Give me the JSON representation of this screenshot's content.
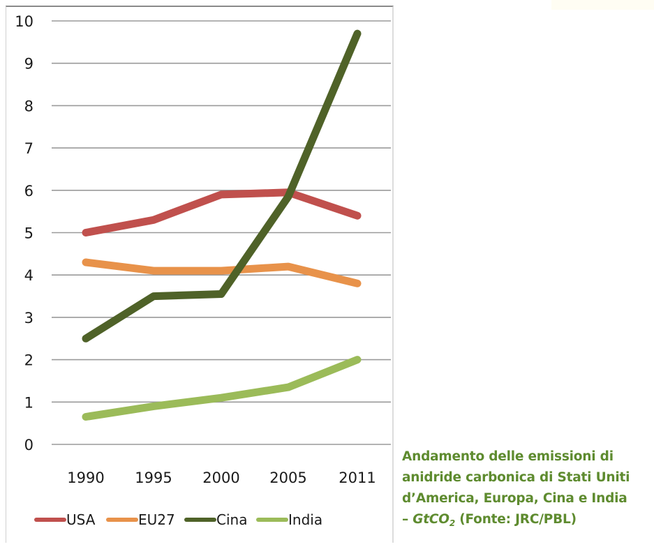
{
  "chart_data": {
    "type": "line",
    "title": "",
    "xlabel": "",
    "ylabel": "",
    "categories": [
      "1990",
      "1995",
      "2000",
      "2005",
      "2011"
    ],
    "ylim": [
      0,
      10
    ],
    "yticks": [
      "0",
      "1",
      "2",
      "3",
      "4",
      "5",
      "6",
      "7",
      "8",
      "9",
      "10"
    ],
    "grid": true,
    "legend_position": "bottom",
    "series": [
      {
        "name": "USA",
        "color": "#c0504d",
        "values": [
          5.0,
          5.3,
          5.9,
          5.95,
          5.4
        ]
      },
      {
        "name": "EU27",
        "color": "#e8924a",
        "values": [
          4.3,
          4.1,
          4.1,
          4.2,
          3.8
        ]
      },
      {
        "name": "Cina",
        "color": "#4f6228",
        "values": [
          2.5,
          3.5,
          3.55,
          5.85,
          9.7
        ]
      },
      {
        "name": "India",
        "color": "#9bbb59",
        "values": [
          0.65,
          0.9,
          1.1,
          1.35,
          2.0
        ]
      }
    ]
  },
  "caption": {
    "line1": "Andamento delle emissioni di",
    "line2": "anidride carbonica di Stati Uniti",
    "line3": "d’America, Europa, Cina e India",
    "dash": "– ",
    "unit_main": "GtCO",
    "unit_sub": "2",
    "source": " (Fonte: JRC/PBL)",
    "color": "#5e8b2f"
  }
}
